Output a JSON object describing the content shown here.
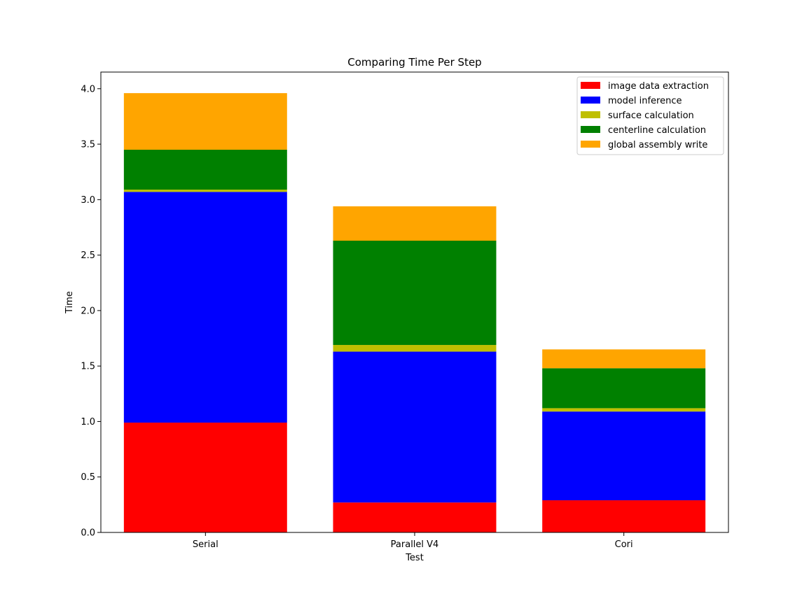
{
  "chart_data": {
    "type": "bar",
    "stacked": true,
    "title": "Comparing Time Per Step",
    "xlabel": "Test",
    "ylabel": "Time",
    "categories": [
      "Serial",
      "Parallel V4",
      "Cori"
    ],
    "ylim": [
      0,
      4.15
    ],
    "yticks": [
      0.0,
      0.5,
      1.0,
      1.5,
      2.0,
      2.5,
      3.0,
      3.5,
      4.0
    ],
    "ytick_labels": [
      "0.0",
      "0.5",
      "1.0",
      "1.5",
      "2.0",
      "2.5",
      "3.0",
      "3.5",
      "4.0"
    ],
    "grid": false,
    "legend_position": "top-right",
    "series": [
      {
        "name": "image data extraction",
        "color": "#ff0000",
        "values": [
          0.99,
          0.27,
          0.29
        ]
      },
      {
        "name": "model inference",
        "color": "#0000ff",
        "values": [
          2.08,
          1.36,
          0.8
        ]
      },
      {
        "name": "surface calculation",
        "color": "#bfbf00",
        "values": [
          0.02,
          0.06,
          0.03
        ]
      },
      {
        "name": "centerline calculation",
        "color": "#008000",
        "values": [
          0.36,
          0.94,
          0.36
        ]
      },
      {
        "name": "global assembly write",
        "color": "#ffa500",
        "values": [
          0.51,
          0.31,
          0.17
        ]
      }
    ]
  }
}
